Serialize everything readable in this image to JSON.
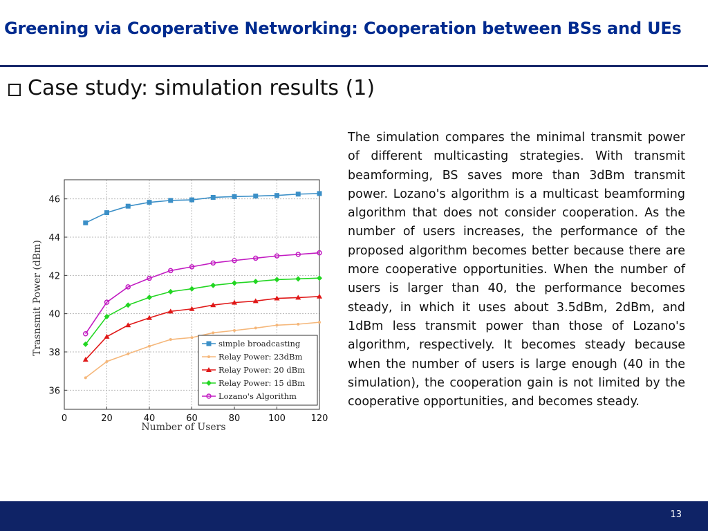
{
  "slide": {
    "title": "Greening via Cooperative Networking: Cooperation between BSs and UEs",
    "section_heading": "Case study: simulation results (1)",
    "body_text": "The simulation compares the minimal transmit power of different multicasting strategies. With transmit beamforming, BS saves more than 3dBm transmit power. Lozano's algorithm is a multicast beamforming algorithm that does not consider cooperation. As the number of users increases, the performance of the proposed algorithm becomes better because there are more cooperative opportunities. When the number of users is larger than 40, the performance becomes steady, in which it uses about 3.5dBm, 2dBm, and 1dBm less transmit power than those of Lozano's algorithm, respectively. It becomes steady because when the number of users is large enough (40 in the simulation), the cooperation gain is not limited by the cooperative opportunities, and becomes steady.",
    "page_number": "13",
    "colors": {
      "title": "#002b8f",
      "rule": "#1a2a6c",
      "footer": "#0f2366"
    }
  },
  "chart_data": {
    "type": "line",
    "xlabel": "Number of Users",
    "ylabel": "Trasnsmit Power (dBm)",
    "xlim": [
      0,
      120
    ],
    "ylim": [
      35,
      47
    ],
    "xticks": [
      0,
      20,
      40,
      60,
      80,
      100,
      120
    ],
    "yticks": [
      36,
      38,
      40,
      42,
      44,
      46
    ],
    "grid": true,
    "legend_position": "bottom-right",
    "x": [
      10,
      20,
      30,
      40,
      50,
      60,
      70,
      80,
      90,
      100,
      110,
      120
    ],
    "series": [
      {
        "name": "simple broadcasting",
        "color": "#3b8fc7",
        "marker": "square",
        "values": [
          44.75,
          45.28,
          45.62,
          45.82,
          45.92,
          45.95,
          46.08,
          46.12,
          46.15,
          46.18,
          46.25,
          46.28
        ]
      },
      {
        "name": "Relay Power: 23dBm",
        "color": "#f5b77a",
        "marker": "dot",
        "values": [
          36.65,
          37.5,
          37.9,
          38.3,
          38.65,
          38.75,
          39.0,
          39.12,
          39.25,
          39.4,
          39.45,
          39.55
        ]
      },
      {
        "name": "Relay Power: 20 dBm",
        "color": "#e01818",
        "marker": "triangle",
        "values": [
          37.6,
          38.8,
          39.4,
          39.78,
          40.12,
          40.25,
          40.45,
          40.58,
          40.66,
          40.8,
          40.84,
          40.9
        ]
      },
      {
        "name": "Relay Power: 15 dBm",
        "color": "#22d622",
        "marker": "diamond",
        "values": [
          38.4,
          39.85,
          40.45,
          40.85,
          41.15,
          41.3,
          41.48,
          41.6,
          41.68,
          41.78,
          41.82,
          41.86
        ]
      },
      {
        "name": "Lozano's Algorithm",
        "color": "#c21cc2",
        "marker": "circle",
        "values": [
          38.95,
          40.6,
          41.4,
          41.85,
          42.25,
          42.45,
          42.65,
          42.78,
          42.9,
          43.02,
          43.1,
          43.18
        ]
      }
    ]
  }
}
